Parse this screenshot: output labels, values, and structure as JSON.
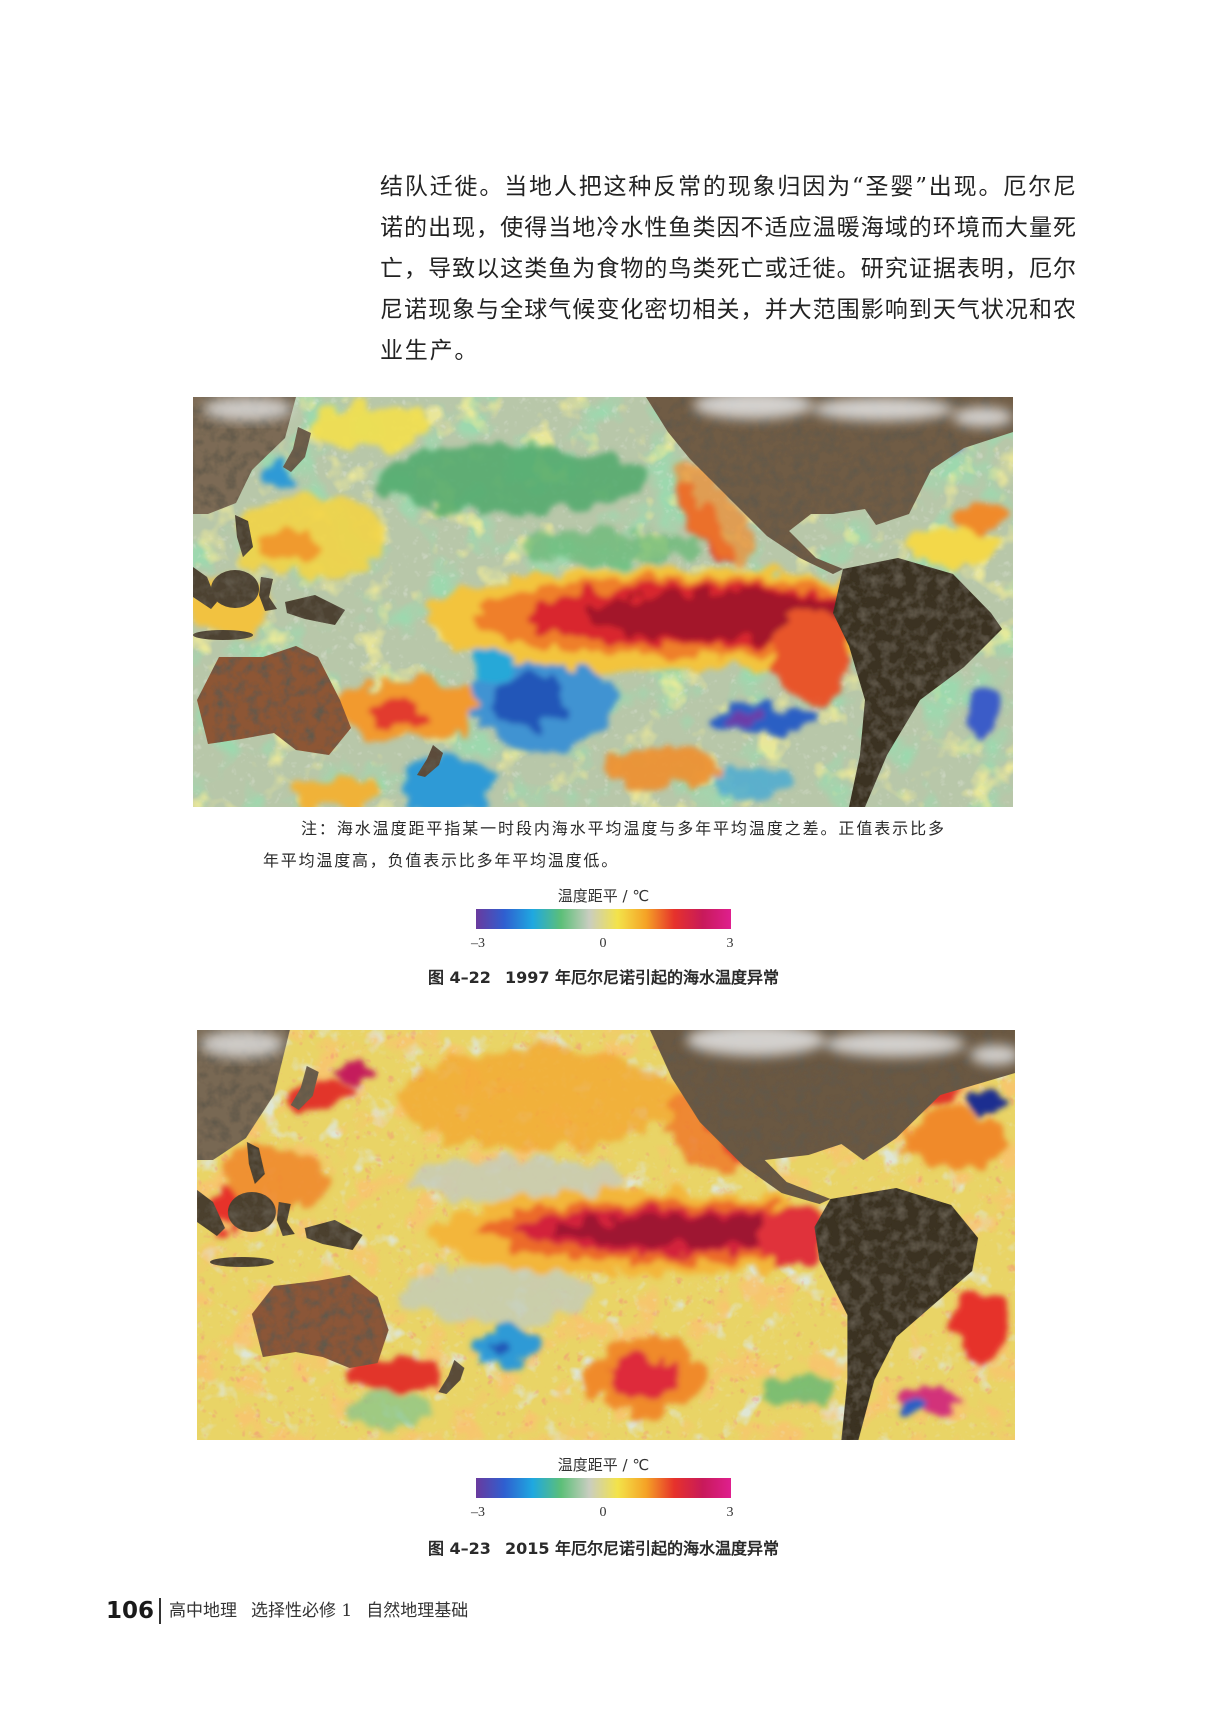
{
  "body_text": {
    "lines": [
      "结队迁徙。当地人把这种反常的现象归因为“圣婴”出现。厄尔尼",
      "诺的出现，使得当地冷水性鱼类因不适应温暖海域的环境而大量死",
      "亡，导致以这类鱼为食物的鸟类死亡或迁徙。研究证据表明，厄尔",
      "尼诺现象与全球气候变化密切相关，并大范围影响到天气状况和农",
      "业生产。"
    ]
  },
  "figure_1": {
    "note": {
      "lines": [
        "注：海水温度距平指某一时段内海水平均温度与多年平均温度之差。正值表示比多",
        "年平均温度高，负值表示比多年平均温度低。"
      ]
    },
    "legend": {
      "title": "温度距平 / ℃",
      "tick_min": "–3",
      "tick_mid": "0",
      "tick_max": "3"
    },
    "caption": {
      "number": "图 4–22",
      "text": "1997 年厄尔尼诺引起的海水温度异常"
    }
  },
  "figure_2": {
    "legend": {
      "title": "温度距平 / ℃",
      "tick_min": "–3",
      "tick_mid": "0",
      "tick_max": "3"
    },
    "caption": {
      "number": "图 4–23",
      "text": "2015 年厄尔尼诺引起的海水温度异常"
    }
  },
  "colorbar_colors": [
    "#6a3a9e",
    "#2f5fd0",
    "#1fa8e0",
    "#5cbf78",
    "#c9cdc0",
    "#f3e34a",
    "#f5a326",
    "#e6322b",
    "#c81a5a",
    "#df1f8e"
  ],
  "footer": {
    "page_number": "106",
    "book": "高中地理",
    "volume": "选择性必修 1",
    "title": "自然地理基础"
  }
}
